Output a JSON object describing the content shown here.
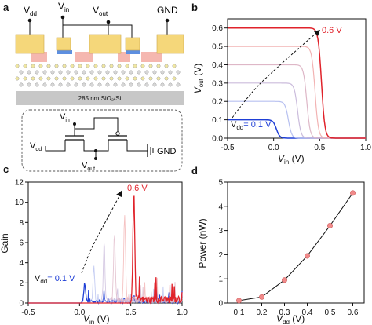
{
  "panel_labels": {
    "a": "a",
    "b": "b",
    "c": "c",
    "d": "d"
  },
  "schematic": {
    "terminal_vdd": "V",
    "terminal_vdd_sub": "dd",
    "terminal_vin": "V",
    "terminal_vin_sub": "in",
    "terminal_vout": "V",
    "terminal_vout_sub": "out",
    "terminal_gnd": "GND",
    "substrate_label": "285 nm SiO₂/Si",
    "circuit_vdd": "V",
    "circuit_vdd_sub": "dd",
    "circuit_vin": "V",
    "circuit_vin_sub": "in",
    "circuit_vout": "V",
    "circuit_vout_sub": "out",
    "circuit_gnd": "GND"
  },
  "colors": {
    "vdd_low": "#1f3fd6",
    "vdd_high": "#e0232b",
    "power_marker": "#f08a8a",
    "channel": "#f5b7b0",
    "contact": "#f5d77a",
    "substrate": "#c7c7c7"
  },
  "chart_data": [
    {
      "id": "b",
      "type": "line",
      "xlabel": "V",
      "xlabel_sub": "in",
      "xlabel_unit": " (V)",
      "ylabel": "V",
      "ylabel_sub": "out",
      "ylabel_unit": " (V)",
      "xlim": [
        -0.5,
        1.0
      ],
      "ylim": [
        0,
        0.65
      ],
      "xticks": [
        "-0.5",
        "0.0",
        "0.5",
        "1.0"
      ],
      "yticks": [
        "0.0",
        "0.1",
        "0.2",
        "0.3",
        "0.4",
        "0.5",
        "0.6"
      ],
      "series": [
        {
          "vdd": 0.1,
          "switch_vin": 0.03
        },
        {
          "vdd": 0.2,
          "switch_vin": 0.16
        },
        {
          "vdd": 0.3,
          "switch_vin": 0.26
        },
        {
          "vdd": 0.4,
          "switch_vin": 0.36
        },
        {
          "vdd": 0.5,
          "switch_vin": 0.45
        },
        {
          "vdd": 0.6,
          "switch_vin": 0.52
        }
      ],
      "annotations": {
        "low": "= 0.1 V",
        "low_prefix": "V",
        "low_sub": "dd",
        "high": "0.6 V"
      }
    },
    {
      "id": "c",
      "type": "line",
      "xlabel": "V",
      "xlabel_sub": "in",
      "xlabel_unit": " (V)",
      "ylabel": "Gain",
      "xlim": [
        -0.5,
        1.0
      ],
      "ylim": [
        0,
        12
      ],
      "xticks": [
        "-0.5",
        "0.0",
        "0.5",
        "1.0"
      ],
      "yticks": [
        "0",
        "2",
        "4",
        "6",
        "8",
        "10",
        "12"
      ],
      "series": [
        {
          "vdd": 0.1,
          "peak_vin": 0.05,
          "peak_gain": 1.8
        },
        {
          "vdd": 0.2,
          "peak_vin": 0.14,
          "peak_gain": 3.2
        },
        {
          "vdd": 0.3,
          "peak_vin": 0.24,
          "peak_gain": 4.8
        },
        {
          "vdd": 0.4,
          "peak_vin": 0.34,
          "peak_gain": 6.5
        },
        {
          "vdd": 0.5,
          "peak_vin": 0.44,
          "peak_gain": 8.5
        },
        {
          "vdd": 0.6,
          "peak_vin": 0.53,
          "peak_gain": 11.0
        }
      ],
      "annotations": {
        "low": "= 0.1 V",
        "low_prefix": "V",
        "low_sub": "dd",
        "high": "0.6 V"
      }
    },
    {
      "id": "d",
      "type": "line",
      "xlabel": "V",
      "xlabel_sub": "dd",
      "xlabel_unit": " (V)",
      "ylabel": "Power (nW)",
      "xlim": [
        0.05,
        0.65
      ],
      "ylim": [
        0,
        5
      ],
      "xticks": [
        "0.1",
        "0.2",
        "0.3",
        "0.4",
        "0.5",
        "0.6"
      ],
      "yticks": [
        "0",
        "1",
        "2",
        "3",
        "4",
        "5"
      ],
      "x": [
        0.1,
        0.2,
        0.3,
        0.4,
        0.5,
        0.6
      ],
      "values": [
        0.1,
        0.25,
        0.95,
        1.95,
        3.2,
        4.55
      ]
    }
  ]
}
